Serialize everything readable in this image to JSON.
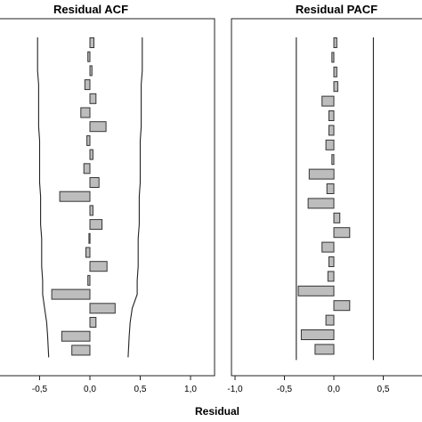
{
  "xlabel": "Residual",
  "chart_data": [
    {
      "type": "bar",
      "orientation": "horizontal",
      "title": "Residual ACF",
      "xlim": [
        -1.0,
        1.0
      ],
      "ticks": [
        -1.0,
        -0.5,
        0.0,
        0.5,
        1.0
      ],
      "tick_labels": [
        "",
        "-0,5",
        "0,0",
        "0,5",
        "1,0"
      ],
      "values": [
        0.04,
        -0.02,
        0.02,
        -0.05,
        0.06,
        -0.09,
        0.16,
        -0.03,
        0.03,
        -0.06,
        0.09,
        -0.3,
        0.03,
        0.12,
        -0.01,
        -0.04,
        0.17,
        -0.02,
        -0.38,
        0.25,
        0.06,
        -0.28,
        -0.18
      ],
      "confidence_band": {
        "upper": [
          0.52,
          0.52,
          0.52,
          0.51,
          0.51,
          0.51,
          0.51,
          0.5,
          0.5,
          0.5,
          0.5,
          0.49,
          0.49,
          0.49,
          0.48,
          0.48,
          0.48,
          0.47,
          0.47,
          0.42,
          0.4,
          0.39,
          0.38
        ],
        "lower": [
          -0.52,
          -0.52,
          -0.52,
          -0.51,
          -0.51,
          -0.51,
          -0.51,
          -0.5,
          -0.5,
          -0.5,
          -0.5,
          -0.49,
          -0.49,
          -0.49,
          -0.48,
          -0.48,
          -0.48,
          -0.47,
          -0.47,
          -0.45,
          -0.43,
          -0.42,
          -0.41
        ]
      },
      "grid": false
    },
    {
      "type": "bar",
      "orientation": "horizontal",
      "title": "Residual PACF",
      "xlim": [
        -1.0,
        1.0
      ],
      "ticks": [
        -1.0,
        -0.5,
        0.0,
        0.5
      ],
      "tick_labels": [
        "-1,0",
        "-0,5",
        "0,0",
        "0,5"
      ],
      "values": [
        0.03,
        -0.02,
        0.03,
        0.04,
        -0.12,
        -0.05,
        -0.05,
        -0.08,
        -0.02,
        -0.25,
        -0.07,
        -0.26,
        0.06,
        0.16,
        -0.12,
        -0.05,
        -0.06,
        -0.36,
        0.16,
        -0.08,
        -0.33,
        -0.19
      ],
      "confidence_band": {
        "upper": 0.4,
        "lower": -0.38
      },
      "grid": false
    }
  ]
}
